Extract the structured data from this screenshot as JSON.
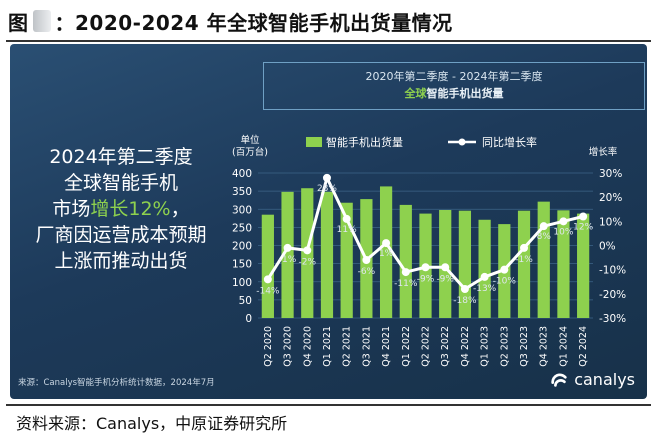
{
  "figure": {
    "label": "图",
    "title": "：2020-2024 年全球智能手机出货量情况",
    "source_footer": "资料来源：Canalys，中原证券研究所"
  },
  "headline": {
    "line1": "2020年第二季度 - 2024年第二季度",
    "line2_accent": "全球",
    "line2_rest": "智能手机出货量"
  },
  "callout": {
    "line1": "2024年第二季度",
    "line2": "全球智能手机",
    "line3_prefix": "市场",
    "line3_accent": "增长12%",
    "line3_suffix": "，",
    "line4": "厂商因运营成本预期",
    "line5": "上涨而推动出货"
  },
  "panel": {
    "source_note": "来源：Canalys智能手机分析统计数据，2024年7月",
    "brand": "canalys"
  },
  "colors": {
    "bar": "#8ed14e",
    "line": "#ffffff",
    "text": "#ffffff",
    "grid": "#3d6488",
    "accent": "#8ed14e"
  },
  "chart_data": {
    "type": "bar",
    "y_unit_label_line1": "单位",
    "y_unit_label_line2": "(百万台)",
    "y2_label": "增长率",
    "legend": [
      "智能手机出货量",
      "同比增长率"
    ],
    "legend_position": "top",
    "categories": [
      "Q2 2020",
      "Q3 2020",
      "Q4 2020",
      "Q1 2021",
      "Q2 2021",
      "Q3 2021",
      "Q4 2021",
      "Q1 2022",
      "Q2 2022",
      "Q3 2022",
      "Q4 2022",
      "Q1 2023",
      "Q2 2023",
      "Q3 2023",
      "Q4 2023",
      "Q1 2024",
      "Q2 2024"
    ],
    "series": [
      {
        "name": "智能手机出货量",
        "type": "bar",
        "axis": "left",
        "values": [
          285,
          348,
          358,
          348,
          318,
          328,
          363,
          312,
          288,
          298,
          296,
          271,
          259,
          296,
          321,
          297,
          288
        ]
      },
      {
        "name": "同比增长率",
        "type": "line",
        "axis": "right",
        "values": [
          -14,
          -1,
          -2,
          28,
          11,
          -6,
          1,
          -11,
          -9,
          -9,
          -18,
          -13,
          -10,
          -1,
          8,
          10,
          12
        ],
        "labels": [
          "-14%",
          "-1%",
          "-2%",
          "28%",
          "11%",
          "-6%",
          "1%",
          "-11%",
          "-9%",
          "-9%",
          "-18%",
          "-13%",
          "-10%",
          "-1%",
          "8%",
          "10%",
          "12%"
        ]
      }
    ],
    "ylim": [
      0,
      400
    ],
    "yticks": [
      0,
      50,
      100,
      150,
      200,
      250,
      300,
      350,
      400
    ],
    "y2lim": [
      -30,
      30
    ],
    "y2ticks": [
      "30%",
      "20%",
      "10%",
      "0%",
      "-10%",
      "-20%",
      "-30%"
    ],
    "y2tick_values": [
      30,
      20,
      10,
      0,
      -10,
      -20,
      -30
    ],
    "grid": true
  }
}
